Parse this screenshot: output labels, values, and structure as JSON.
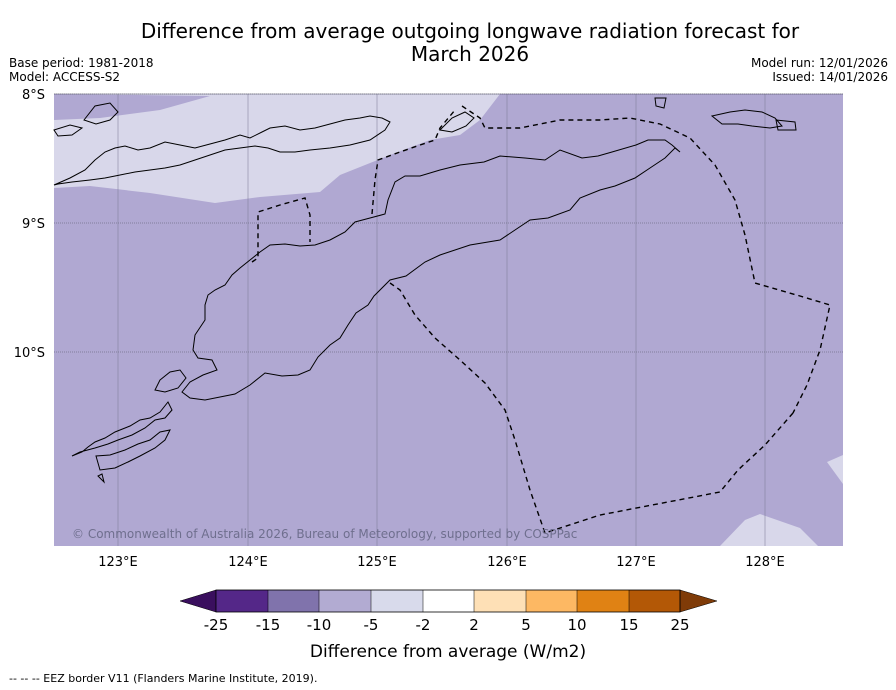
{
  "header": {
    "title_line1": "Difference from average outgoing longwave radiation forecast for",
    "title_line2": "March 2026",
    "base_period": "Base period: 1981-2018",
    "model": "Model: ACCESS-S2",
    "model_run": "Model run: 12/01/2026",
    "issued": "Issued: 14/01/2026"
  },
  "map": {
    "lat_labels": [
      "8°S",
      "9°S",
      "10°S"
    ],
    "lon_labels": [
      "123°E",
      "124°E",
      "125°E",
      "126°E",
      "127°E",
      "128°E"
    ],
    "credit": "© Commonwealth of Australia 2026, Bureau of Meteorology, supported by COSPPac",
    "category_colors": {
      "-10 to -5": "#b0a8d2",
      "-5 to -2": "#d8d7ea"
    }
  },
  "colorbar": {
    "ticks": [
      "-25",
      "-15",
      "-10",
      "-5",
      "-2",
      "2",
      "5",
      "10",
      "15",
      "25"
    ],
    "colors": [
      "#3a0f5e",
      "#542788",
      "#8073ac",
      "#b2abd2",
      "#d8daeb",
      "#ffffff",
      "#fee0b6",
      "#fdb863",
      "#e08214",
      "#b35806",
      "#7f3b08"
    ],
    "label": "Difference from average (W/m2)"
  },
  "footer": {
    "legend": "--  --  -- EEZ border V11 (Flanders Marine Institute, 2019)."
  }
}
